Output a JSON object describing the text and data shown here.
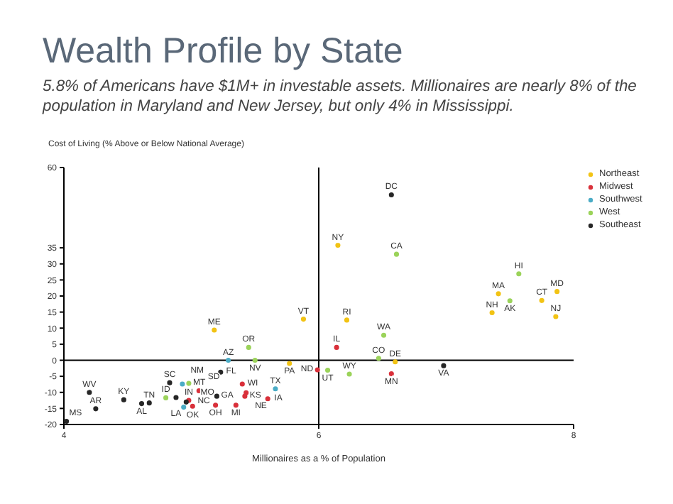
{
  "chart_data": {
    "type": "scatter",
    "title": "Wealth Profile by State",
    "subtitle": "5.8% of Americans have $1M+ in investable assets. Millionaires are nearly 8% of the population in Maryland and New Jersey, but only 4% in Mississippi.",
    "xlabel": "Millionaires as a % of Population",
    "ylabel": "Cost of Living (% Above or Below National Average)",
    "xlim": [
      4,
      8
    ],
    "xticks": [
      4,
      6,
      8
    ],
    "ylim": [
      -20,
      60
    ],
    "yticks": [
      -20,
      -15,
      -10,
      -5,
      0,
      5,
      10,
      15,
      20,
      25,
      30,
      35,
      60
    ],
    "legend": "top right",
    "marker": "circle",
    "grid": false,
    "ref_lines": [
      {
        "axis": "x",
        "value": 6,
        "color": "#000000"
      },
      {
        "axis": "y",
        "value": 0,
        "color": "#000000"
      }
    ],
    "series": [
      {
        "name": "Northeast",
        "color": "#f2c314",
        "x": [
          5.18,
          5.77,
          5.88,
          6.15,
          6.22,
          6.6,
          7.41,
          7.36,
          7.75,
          7.87,
          7.86
        ],
        "values": [
          9.4,
          -1,
          12.8,
          35.8,
          12.5,
          -0.5,
          20.7,
          14.8,
          18.6,
          21.4,
          13.6
        ],
        "value_labels": [
          "ME",
          "PA",
          "VT",
          "NY",
          "RI",
          "DE",
          "MA",
          "NH",
          "CT",
          "MD",
          "NJ"
        ]
      },
      {
        "name": "Midwest",
        "color": "#d9303a",
        "x": [
          4.98,
          5.06,
          5.01,
          5.19,
          5.4,
          5.43,
          5.42,
          5.35,
          5.6,
          5.99,
          6.14,
          6.57
        ],
        "values": [
          -12.5,
          -9.5,
          -14.3,
          -14,
          -7.4,
          -10.1,
          -11.2,
          -14,
          -12,
          -3,
          4,
          -4.2
        ],
        "value_labels": [
          "IN",
          "SD",
          "MO",
          "OH",
          "WI",
          "NE",
          "KS",
          "MI",
          "IA",
          "ND",
          "IL",
          "MN"
        ]
      },
      {
        "name": "Southwest",
        "color": "#4bacc6",
        "x": [
          4.93,
          4.94,
          5.29,
          5.66
        ],
        "values": [
          -7.4,
          -14.6,
          0,
          -8.9
        ],
        "value_labels": [
          "NM",
          "OK",
          "AZ",
          "TX"
        ]
      },
      {
        "name": "West",
        "color": "#9bd35a",
        "x": [
          4.98,
          4.8,
          5.45,
          5.5,
          6.07,
          6.24,
          6.51,
          6.47,
          6.61,
          7.57,
          7.5
        ],
        "values": [
          -7.2,
          -11.7,
          4,
          0,
          -3.1,
          -4.3,
          7.8,
          0.6,
          33,
          26.9,
          18.5
        ],
        "value_labels": [
          "MT",
          "ID",
          "OR",
          "NV",
          "UT",
          "WY",
          "WA",
          "CO",
          "CA",
          "HI",
          "AK"
        ]
      },
      {
        "name": "Southeast",
        "color": "#262626",
        "x": [
          4.02,
          4.2,
          4.25,
          4.47,
          4.61,
          4.67,
          4.83,
          4.88,
          4.96,
          5.2,
          5.23,
          6.57,
          6.98
        ],
        "values": [
          -19,
          -10,
          -15.1,
          -12.3,
          -13.5,
          -13.3,
          -7,
          -11.6,
          -13,
          -11.2,
          -3.7,
          51.5,
          -1.7
        ],
        "value_labels": [
          "MS",
          "WV",
          "AR",
          "KY",
          "AL",
          "TN",
          "SC",
          "LA",
          "NC",
          "GA",
          "FL",
          "DC",
          "VA"
        ]
      }
    ]
  }
}
